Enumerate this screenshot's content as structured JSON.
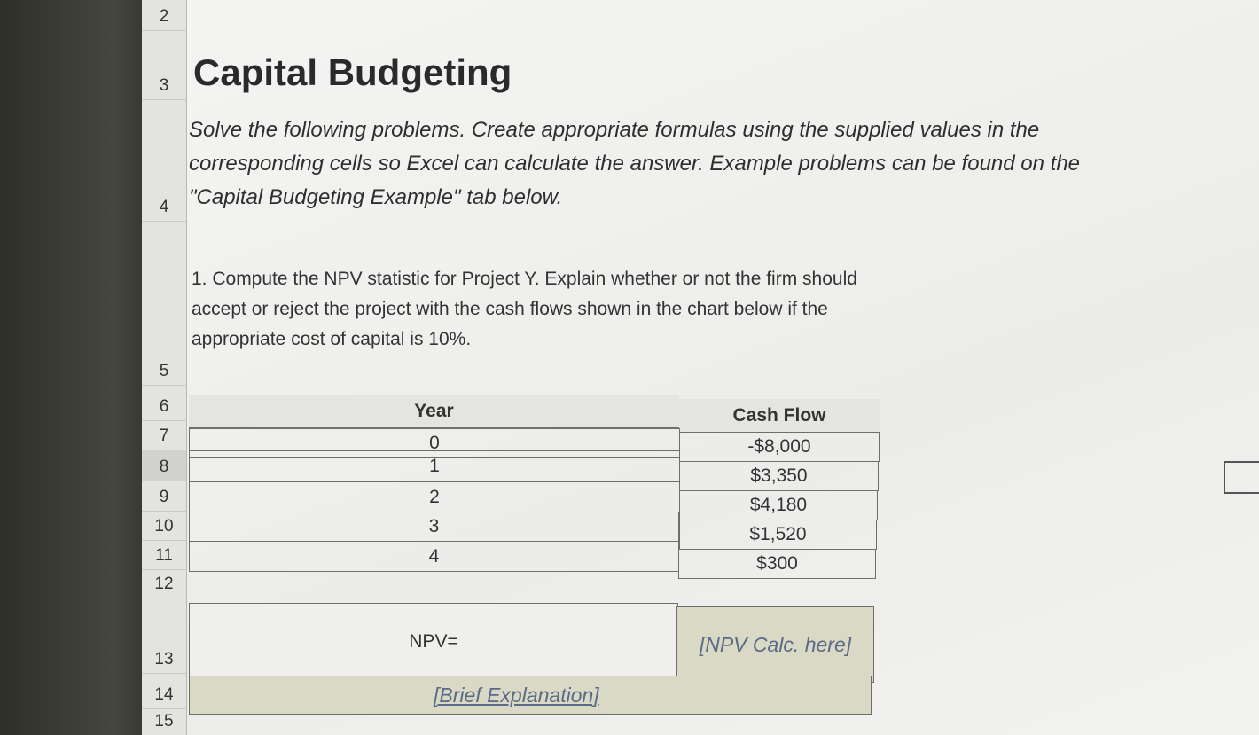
{
  "row_numbers": [
    "2",
    "3",
    "4",
    "5",
    "6",
    "7",
    "8",
    "9",
    "10",
    "11",
    "12",
    "13",
    "14",
    "15"
  ],
  "title": "Capital Budgeting",
  "instructions": "Solve the following problems. Create appropriate formulas using the supplied values in the corresponding cells so Excel can calculate the answer. Example problems can be found on the \"Capital Budgeting Example\" tab below.",
  "question": "1. Compute the NPV statistic for Project Y. Explain whether or not the firm should accept or reject the project with the cash flows shown in the chart below if the appropriate cost of capital is 10%.",
  "table": {
    "headers": [
      "Year",
      "Cash Flow"
    ],
    "rows": [
      [
        "0",
        "-$8,000"
      ],
      [
        "1",
        "$3,350"
      ],
      [
        "2",
        "$4,180"
      ],
      [
        "3",
        "$1,520"
      ],
      [
        "4",
        "$300"
      ]
    ]
  },
  "npv_label": "NPV=",
  "npv_placeholder": "[NPV Calc. here]",
  "explanation_placeholder": "[Brief Explanation]"
}
